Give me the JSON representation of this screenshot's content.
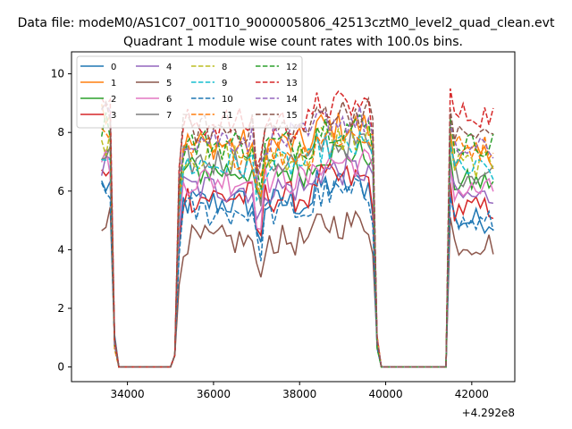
{
  "figure": {
    "suptitle": "Data file: modeM0/AS1C07_001T10_9000005806_42513cztM0_level2_quad_clean.evt",
    "background": "#ffffff"
  },
  "chart_data": {
    "type": "line",
    "title": "Quadrant 1 module wise count rates with 100.0s bins.",
    "xlabel": "",
    "ylabel": "",
    "x_offset_label": "+4.292e8",
    "xlim": [
      32700,
      43000
    ],
    "ylim": [
      -0.5,
      10.75
    ],
    "xticks": [
      34000,
      36000,
      38000,
      40000,
      42000
    ],
    "xtick_labels": [
      "34000",
      "36000",
      "38000",
      "40000",
      "42000"
    ],
    "yticks": [
      0,
      2,
      4,
      6,
      8,
      10
    ],
    "ytick_labels": [
      "0",
      "2",
      "4",
      "6",
      "8",
      "10"
    ],
    "grid": false,
    "legend": {
      "placement": "upper-left",
      "columns": 4
    },
    "series": [
      {
        "name": "0",
        "color": "#1f77b4",
        "dash": "solid",
        "level": 5.6,
        "start": 6.2,
        "end2": 5.0
      },
      {
        "name": "1",
        "color": "#ff7f0e",
        "dash": "solid",
        "level": 7.6,
        "start": 8.8,
        "end2": 7.2
      },
      {
        "name": "2",
        "color": "#2ca02c",
        "dash": "solid",
        "level": 6.7,
        "start": 7.3,
        "end2": 6.3
      },
      {
        "name": "3",
        "color": "#d62728",
        "dash": "solid",
        "level": 5.8,
        "start": 6.5,
        "end2": 5.4
      },
      {
        "name": "4",
        "color": "#9467bd",
        "dash": "solid",
        "level": 6.1,
        "start": 6.8,
        "end2": 5.8
      },
      {
        "name": "5",
        "color": "#8c564b",
        "dash": "solid",
        "level": 4.3,
        "start": 5.1,
        "end2": 4.2
      },
      {
        "name": "6",
        "color": "#e377c2",
        "dash": "solid",
        "level": 6.4,
        "start": 7.0,
        "end2": 6.0
      },
      {
        "name": "7",
        "color": "#7f7f7f",
        "dash": "solid",
        "level": 7.0,
        "start": 7.2,
        "end2": 6.6
      },
      {
        "name": "8",
        "color": "#bcbd22",
        "dash": "dashed",
        "level": 7.2,
        "start": 7.7,
        "end2": 6.9
      },
      {
        "name": "9",
        "color": "#17becf",
        "dash": "dashed",
        "level": 6.9,
        "start": 7.4,
        "end2": 6.7
      },
      {
        "name": "10",
        "color": "#1f77b4",
        "dash": "dashed",
        "level": 5.3,
        "start": 5.8,
        "end2": 4.9
      },
      {
        "name": "11",
        "color": "#ff7f0e",
        "dash": "dashed",
        "level": 7.3,
        "start": 8.0,
        "end2": 7.5
      },
      {
        "name": "12",
        "color": "#2ca02c",
        "dash": "dashed",
        "level": 7.6,
        "start": 8.3,
        "end2": 7.6
      },
      {
        "name": "13",
        "color": "#d62728",
        "dash": "dashed",
        "level": 8.3,
        "start": 9.2,
        "end2": 8.6
      },
      {
        "name": "14",
        "color": "#9467bd",
        "dash": "dashed",
        "level": 7.8,
        "start": 8.6,
        "end2": 7.4
      },
      {
        "name": "15",
        "color": "#8c564b",
        "dash": "dashed",
        "level": 8.1,
        "start": 8.9,
        "end2": 7.9
      }
    ]
  }
}
